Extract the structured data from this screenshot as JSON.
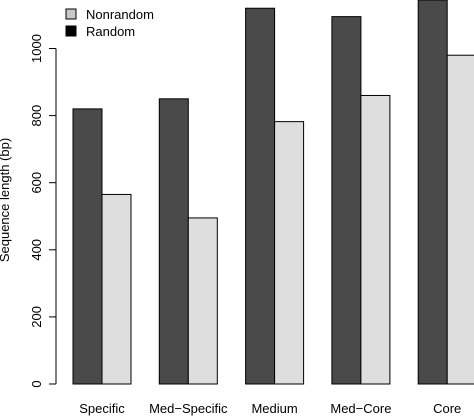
{
  "chart_data": {
    "type": "bar",
    "ylabel": "Sequence length (bp)",
    "ylim": [
      0,
      1150
    ],
    "yticks": [
      0,
      200,
      400,
      600,
      800,
      1000
    ],
    "categories": [
      "Specific",
      "Med−Specific",
      "Medium",
      "Med−Core",
      "Core"
    ],
    "series": [
      {
        "name": "Random",
        "color": "#4a4a4a",
        "values": [
          820,
          850,
          1120,
          1095,
          1160
        ]
      },
      {
        "name": "Nonrandom",
        "color": "#dedede",
        "values": [
          565,
          495,
          782,
          860,
          980
        ]
      }
    ],
    "legend": {
      "position": "top-left",
      "entries": [
        {
          "label": "Nonrandom",
          "swatch": "#c8c8c8"
        },
        {
          "label": "Random",
          "swatch": "#000000"
        }
      ]
    }
  }
}
